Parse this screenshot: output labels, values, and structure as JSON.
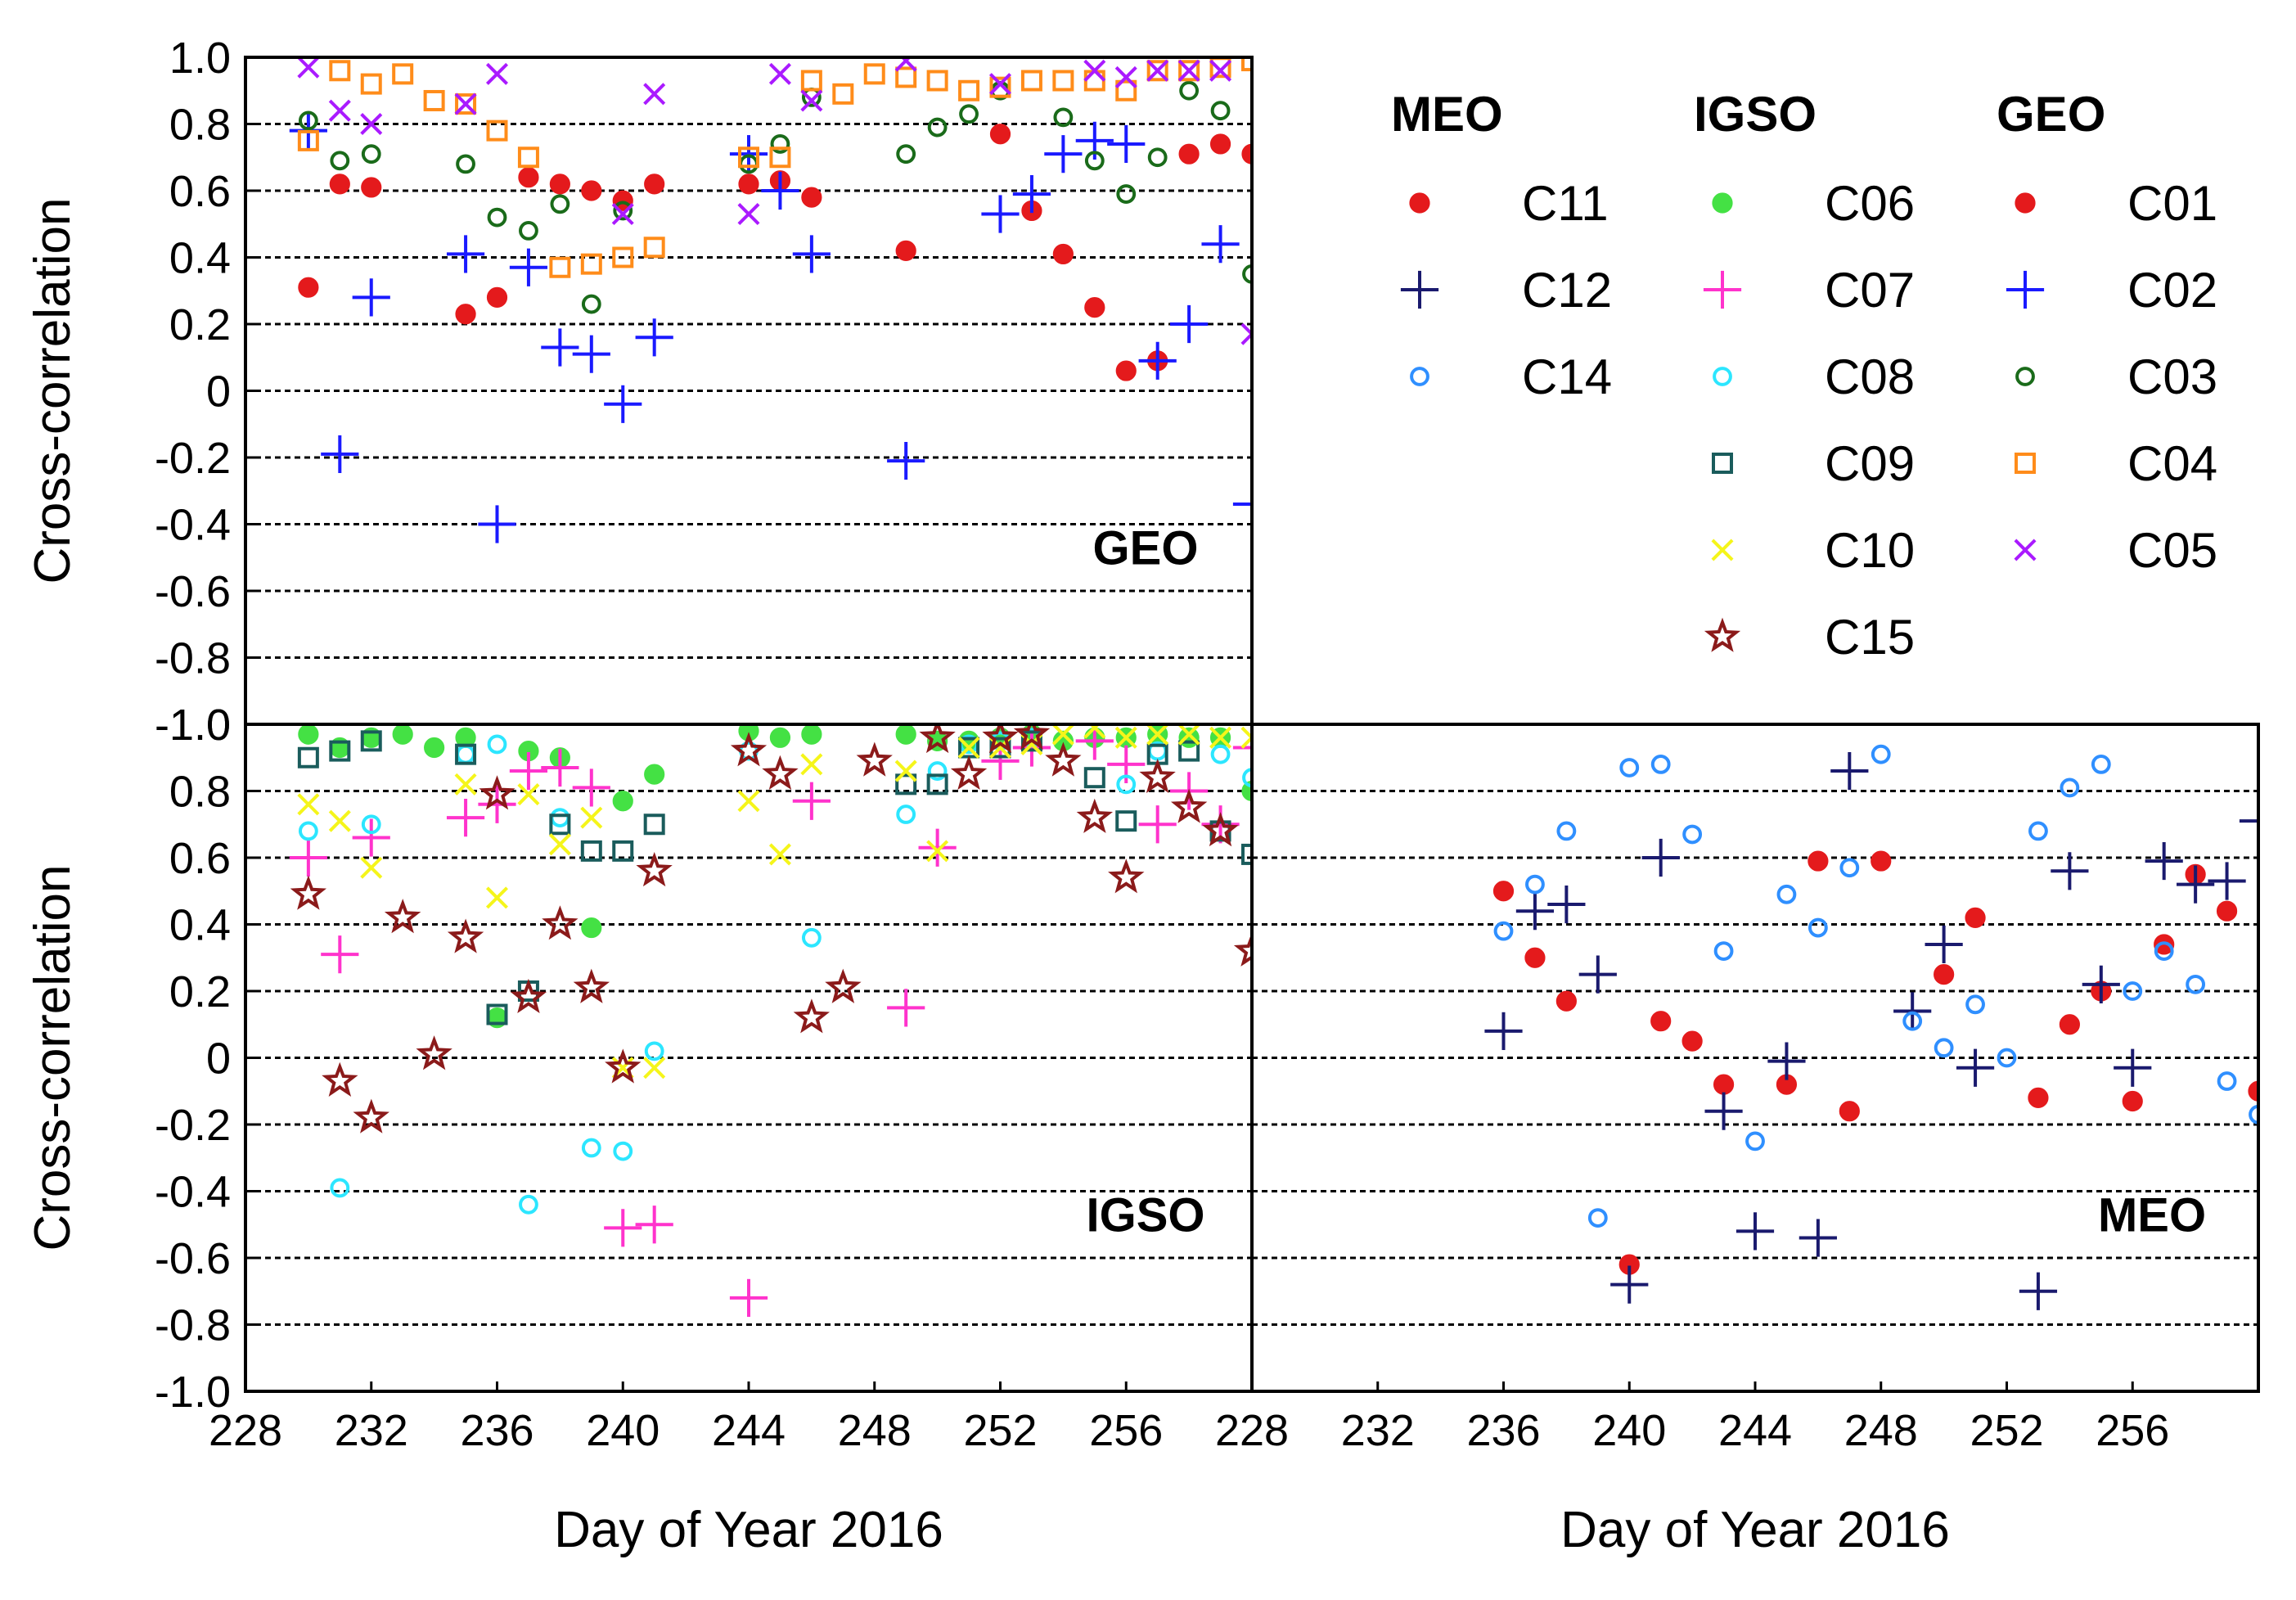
{
  "chart_data": {
    "type": "scatter",
    "x_axis": {
      "label": "Day of Year 2016",
      "range": [
        228,
        260
      ],
      "ticks": [
        228,
        232,
        236,
        240,
        244,
        248,
        252,
        256
      ]
    },
    "y_axis": {
      "label": "Cross-correlation",
      "range": [
        -1.0,
        1.0
      ],
      "ticks": [
        1.0,
        0.8,
        0.6,
        0.4,
        0.2,
        0,
        -0.2,
        -0.4,
        -0.6,
        -0.8,
        -1.0
      ],
      "tick_labels": [
        "1.0",
        "0.8",
        "0.6",
        "0.4",
        "0.2",
        "0",
        "-0.2",
        "-0.4",
        "-0.6",
        "-0.8",
        "-1.0"
      ]
    },
    "legend": {
      "groups": [
        {
          "name": "MEO",
          "entries": [
            {
              "label": "C11",
              "color": "#e41a1c",
              "marker": "filled-circle"
            },
            {
              "label": "C12",
              "color": "#1a1a6e",
              "marker": "plus"
            },
            {
              "label": "C14",
              "color": "#2f8fff",
              "marker": "open-circle"
            }
          ]
        },
        {
          "name": "IGSO",
          "entries": [
            {
              "label": "C06",
              "color": "#44e144",
              "marker": "filled-circle"
            },
            {
              "label": "C07",
              "color": "#ff33cc",
              "marker": "plus"
            },
            {
              "label": "C08",
              "color": "#2ce6ff",
              "marker": "open-circle"
            },
            {
              "label": "C09",
              "color": "#1a5c5c",
              "marker": "open-square"
            },
            {
              "label": "C10",
              "color": "#f5f51a",
              "marker": "x"
            },
            {
              "label": "C15",
              "color": "#8b1a1a",
              "marker": "open-star"
            }
          ]
        },
        {
          "name": "GEO",
          "entries": [
            {
              "label": "C01",
              "color": "#e41a1c",
              "marker": "filled-circle"
            },
            {
              "label": "C02",
              "color": "#1a1aff",
              "marker": "plus"
            },
            {
              "label": "C03",
              "color": "#1a6b1a",
              "marker": "open-circle"
            },
            {
              "label": "C04",
              "color": "#ff8c1a",
              "marker": "open-square"
            },
            {
              "label": "C05",
              "color": "#aa1aff",
              "marker": "x"
            }
          ]
        }
      ]
    },
    "panels": [
      {
        "title": "GEO",
        "xlabel": "",
        "ylabel": "Cross-correlation",
        "series": [
          {
            "name": "C01",
            "x": [
              230,
              231,
              232,
              235,
              236,
              237,
              238,
              239,
              240,
              241,
              244,
              245,
              246,
              249,
              252,
              253,
              254,
              255,
              256,
              257,
              258,
              259,
              260
            ],
            "y": [
              0.31,
              0.62,
              0.61,
              0.23,
              0.28,
              0.64,
              0.62,
              0.6,
              0.57,
              0.62,
              0.62,
              0.63,
              0.58,
              0.42,
              0.77,
              0.54,
              0.41,
              0.25,
              0.06,
              0.09,
              0.71,
              0.74,
              0.71
            ]
          },
          {
            "name": "C02",
            "x": [
              230,
              231,
              232,
              235,
              236,
              237,
              238,
              239,
              240,
              241,
              244,
              245,
              246,
              249,
              252,
              253,
              254,
              255,
              256,
              257,
              258,
              259,
              260
            ],
            "y": [
              0.78,
              -0.19,
              0.28,
              0.41,
              -0.4,
              0.37,
              0.13,
              0.11,
              -0.04,
              0.16,
              0.71,
              0.6,
              0.41,
              -0.21,
              0.53,
              0.59,
              0.71,
              0.75,
              0.74,
              0.09,
              0.2,
              0.44,
              -0.34
            ]
          },
          {
            "name": "C03",
            "x": [
              230,
              231,
              232,
              235,
              236,
              237,
              238,
              239,
              240,
              244,
              245,
              246,
              249,
              250,
              251,
              252,
              254,
              255,
              256,
              257,
              258,
              259,
              260
            ],
            "y": [
              0.81,
              0.69,
              0.71,
              0.68,
              0.52,
              0.48,
              0.56,
              0.26,
              0.54,
              0.68,
              0.74,
              0.88,
              0.71,
              0.79,
              0.83,
              0.9,
              0.82,
              0.69,
              0.59,
              0.7,
              0.9,
              0.84,
              0.35
            ]
          },
          {
            "name": "C04",
            "x": [
              230,
              231,
              232,
              233,
              234,
              235,
              236,
              237,
              238,
              239,
              240,
              241,
              244,
              245,
              246,
              247,
              248,
              249,
              250,
              251,
              252,
              253,
              254,
              255,
              256,
              257,
              258,
              259,
              260
            ],
            "y": [
              0.75,
              0.96,
              0.92,
              0.95,
              0.87,
              0.86,
              0.78,
              0.7,
              0.37,
              0.38,
              0.4,
              0.43,
              0.7,
              0.7,
              0.93,
              0.89,
              0.95,
              0.94,
              0.93,
              0.9,
              0.91,
              0.93,
              0.93,
              0.93,
              0.9,
              0.96,
              0.96,
              0.97,
              0.99
            ]
          },
          {
            "name": "C05",
            "x": [
              230,
              231,
              232,
              235,
              236,
              240,
              241,
              244,
              245,
              246,
              249,
              252,
              255,
              256,
              257,
              258,
              259,
              260
            ],
            "y": [
              0.97,
              0.84,
              0.8,
              0.86,
              0.95,
              0.53,
              0.89,
              0.53,
              0.95,
              0.87,
              0.99,
              0.92,
              0.96,
              0.94,
              0.96,
              0.96,
              0.96,
              0.17
            ]
          }
        ]
      },
      {
        "title": "IGSO",
        "xlabel": "Day of Year 2016",
        "ylabel": "Cross-correlation",
        "series": [
          {
            "name": "C06",
            "x": [
              230,
              231,
              232,
              233,
              234,
              235,
              236,
              237,
              238,
              239,
              240,
              241,
              244,
              245,
              246,
              249,
              250,
              251,
              252,
              253,
              254,
              255,
              256,
              257,
              258,
              259,
              260
            ],
            "y": [
              0.97,
              0.93,
              0.96,
              0.97,
              0.93,
              0.96,
              0.12,
              0.92,
              0.9,
              0.39,
              0.77,
              0.85,
              0.98,
              0.96,
              0.97,
              0.97,
              0.95,
              0.95,
              0.96,
              0.97,
              0.95,
              0.96,
              0.96,
              0.97,
              0.96,
              0.96,
              0.8
            ]
          },
          {
            "name": "C07",
            "x": [
              230,
              231,
              232,
              235,
              236,
              237,
              238,
              239,
              240,
              241,
              244,
              246,
              249,
              250,
              252,
              253,
              255,
              256,
              257,
              258,
              259,
              260
            ],
            "y": [
              0.6,
              0.31,
              0.66,
              0.72,
              0.76,
              0.86,
              0.87,
              0.81,
              -0.51,
              -0.5,
              -0.72,
              0.77,
              0.15,
              0.63,
              0.89,
              0.93,
              0.95,
              0.88,
              0.7,
              0.8,
              0.7,
              0.93
            ]
          },
          {
            "name": "C08",
            "x": [
              230,
              231,
              232,
              235,
              236,
              237,
              238,
              239,
              240,
              241,
              244,
              246,
              249,
              250,
              251,
              252,
              253,
              256,
              257,
              259,
              260
            ],
            "y": [
              0.68,
              -0.39,
              0.7,
              0.91,
              0.94,
              -0.44,
              0.72,
              -0.27,
              -0.28,
              0.02,
              0.92,
              0.36,
              0.73,
              0.86,
              0.94,
              0.95,
              0.96,
              0.82,
              0.92,
              0.91,
              0.84
            ]
          },
          {
            "name": "C09",
            "x": [
              230,
              231,
              232,
              235,
              236,
              237,
              238,
              239,
              240,
              241,
              249,
              250,
              251,
              252,
              253,
              255,
              256,
              257,
              258,
              259,
              260
            ],
            "y": [
              0.9,
              0.92,
              0.95,
              0.91,
              0.13,
              0.2,
              0.7,
              0.62,
              0.62,
              0.7,
              0.82,
              0.82,
              0.93,
              0.93,
              0.95,
              0.84,
              0.71,
              0.91,
              0.92,
              0.68,
              0.61
            ]
          },
          {
            "name": "C10",
            "x": [
              230,
              231,
              232,
              235,
              236,
              237,
              238,
              239,
              240,
              241,
              244,
              245,
              246,
              249,
              250,
              251,
              252,
              253,
              254,
              255,
              256,
              257,
              258,
              259,
              260
            ],
            "y": [
              0.76,
              0.71,
              0.57,
              0.82,
              0.48,
              0.79,
              0.64,
              0.72,
              -0.03,
              -0.03,
              0.77,
              0.61,
              0.88,
              0.86,
              0.62,
              0.93,
              0.93,
              0.94,
              0.97,
              0.99,
              0.96,
              0.97,
              0.97,
              0.96,
              0.96
            ]
          },
          {
            "name": "C15",
            "x": [
              230,
              231,
              232,
              233,
              234,
              235,
              236,
              237,
              238,
              239,
              240,
              241,
              244,
              245,
              246,
              247,
              248,
              250,
              251,
              252,
              253,
              254,
              255,
              256,
              257,
              258,
              259,
              260
            ],
            "y": [
              0.49,
              -0.07,
              -0.18,
              0.42,
              0.01,
              0.36,
              0.79,
              0.18,
              0.4,
              0.21,
              -0.03,
              0.56,
              0.92,
              0.85,
              0.12,
              0.21,
              0.89,
              0.96,
              0.85,
              0.96,
              0.97,
              0.89,
              0.72,
              0.54,
              0.84,
              0.75,
              0.68,
              0.32
            ]
          }
        ]
      },
      {
        "title": "MEO",
        "xlabel": "Day of Year 2016",
        "ylabel": "",
        "series": [
          {
            "name": "C11",
            "x": [
              236,
              237,
              238,
              240,
              241,
              242,
              243,
              245,
              246,
              247,
              248,
              250,
              251,
              253,
              254,
              255,
              256,
              257,
              258,
              259,
              260
            ],
            "y": [
              0.5,
              0.3,
              0.17,
              -0.62,
              0.11,
              0.05,
              -0.08,
              -0.08,
              0.59,
              -0.16,
              0.59,
              0.25,
              0.42,
              -0.12,
              0.1,
              0.2,
              -0.13,
              0.34,
              0.55,
              0.44,
              -0.1
            ]
          },
          {
            "name": "C12",
            "x": [
              236,
              237,
              238,
              239,
              240,
              241,
              243,
              244,
              245,
              246,
              247,
              249,
              250,
              251,
              253,
              254,
              255,
              256,
              257,
              258,
              259,
              260
            ],
            "y": [
              0.08,
              0.44,
              0.46,
              0.25,
              -0.68,
              0.6,
              -0.16,
              -0.52,
              -0.01,
              -0.54,
              0.86,
              0.14,
              0.34,
              -0.03,
              -0.7,
              0.56,
              0.22,
              -0.03,
              0.59,
              0.52,
              0.53,
              0.71
            ]
          },
          {
            "name": "C14",
            "x": [
              236,
              237,
              238,
              239,
              240,
              241,
              242,
              243,
              244,
              245,
              246,
              247,
              248,
              249,
              250,
              251,
              252,
              253,
              254,
              255,
              256,
              257,
              258,
              259,
              260
            ],
            "y": [
              0.38,
              0.52,
              0.68,
              -0.48,
              0.87,
              0.88,
              0.67,
              0.32,
              -0.25,
              0.49,
              0.39,
              0.57,
              0.91,
              0.11,
              0.03,
              0.16,
              0.0,
              0.68,
              0.81,
              0.88,
              0.2,
              0.32,
              0.22,
              -0.07,
              -0.17
            ]
          }
        ]
      }
    ]
  }
}
